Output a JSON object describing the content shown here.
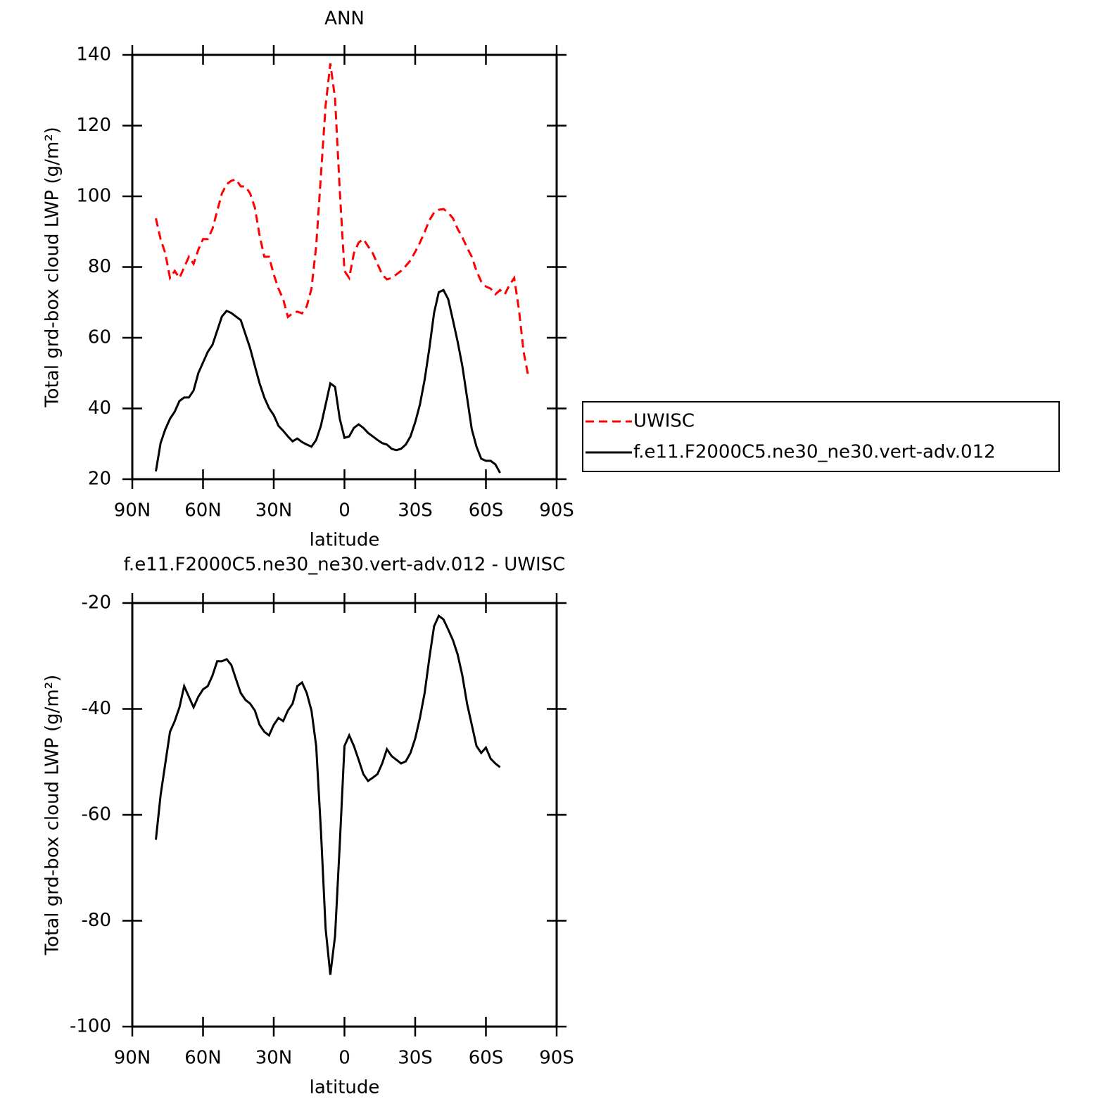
{
  "chart_data": [
    {
      "type": "line",
      "title": "ANN",
      "x_label": "latitude",
      "y_label": "Total grd-box cloud LWP (g/m²)",
      "x": [
        80,
        78,
        76,
        74,
        72,
        70,
        68,
        66,
        64,
        62,
        60,
        58,
        56,
        54,
        52,
        50,
        48,
        46,
        44,
        42,
        40,
        38,
        36,
        34,
        32,
        30,
        28,
        26,
        24,
        22,
        20,
        18,
        16,
        14,
        12,
        10,
        8,
        6,
        4,
        2,
        0,
        -2,
        -4,
        -6,
        -8,
        -10,
        -12,
        -14,
        -16,
        -18,
        -20,
        -22,
        -24,
        -26,
        -28,
        -30,
        -32,
        -34,
        -36,
        -38,
        -40,
        -42,
        -44,
        -46,
        -48,
        -50,
        -52,
        -54,
        -56,
        -58,
        -60,
        -62,
        -64,
        -66,
        -68,
        -70,
        -72,
        -74,
        -76,
        -78
      ],
      "series": [
        {
          "name": "UWISC",
          "color": "#ff0000",
          "dashed": true,
          "values": [
            93.8,
            87.9,
            83.9,
            76.9,
            78.9,
            76.9,
            79.9,
            82.9,
            80.9,
            84.9,
            87.9,
            87.9,
            90.8,
            95.8,
            100.8,
            103.4,
            104.4,
            104.8,
            102.8,
            102.8,
            100.8,
            96.8,
            88.9,
            82.9,
            82.9,
            77.9,
            73.9,
            70.9,
            65.9,
            66.9,
            67.4,
            66.9,
            68.9,
            73.9,
            85.9,
            105.8,
            125.7,
            137.6,
            127.7,
            101.8,
            78.9,
            76.9,
            83.9,
            86.9,
            87.9,
            85.9,
            83.9,
            80.9,
            77.9,
            76.5,
            76.9,
            77.9,
            78.9,
            80.3,
            81.9,
            84.3,
            86.9,
            89.9,
            93.2,
            95.4,
            96.2,
            96.4,
            95.4,
            93.8,
            90.8,
            88.4,
            85.5,
            82.9,
            78.9,
            75.9,
            74.5,
            73.9,
            72.3,
            73.5,
            72.3,
            74.9,
            76.9,
            68.0,
            56.0,
            49.0
          ]
        },
        {
          "name": "f.e11.F2000C5.ne30_ne30.vert-adv.012",
          "color": "#000000",
          "dashed": false,
          "values": [
            22.2,
            30.2,
            34.1,
            37.1,
            39.1,
            42.1,
            43.1,
            43.1,
            45.1,
            50.0,
            53.0,
            56.0,
            58.0,
            62.0,
            66.0,
            67.6,
            67.0,
            66.0,
            65.0,
            61.0,
            57.0,
            52.0,
            47.1,
            43.1,
            40.1,
            38.1,
            35.1,
            33.7,
            32.1,
            30.7,
            31.5,
            30.5,
            29.8,
            29.2,
            31.1,
            35.1,
            41.1,
            47.1,
            46.1,
            37.1,
            31.7,
            32.1,
            34.5,
            35.5,
            34.5,
            33.1,
            32.1,
            31.1,
            30.2,
            29.8,
            28.6,
            28.2,
            28.6,
            29.8,
            32.1,
            36.1,
            41.1,
            48.1,
            57.0,
            67.0,
            72.9,
            73.5,
            70.9,
            65.0,
            58.9,
            52.0,
            43.1,
            34.1,
            29.2,
            25.8,
            25.2,
            25.2,
            24.2,
            21.8,
            null,
            null,
            null,
            null,
            null,
            null
          ]
        }
      ],
      "xlim": [
        90,
        -90
      ],
      "xticks": [
        {
          "value": 90,
          "label": "90N"
        },
        {
          "value": 60,
          "label": "60N"
        },
        {
          "value": 30,
          "label": "30N"
        },
        0,
        {
          "value": -30,
          "label": "30S"
        },
        {
          "value": -60,
          "label": "60S"
        },
        {
          "value": -90,
          "label": "90S"
        }
      ],
      "ylim": [
        20,
        140
      ],
      "yticks": [
        20,
        40,
        60,
        80,
        100,
        120,
        140
      ],
      "legend": "right"
    },
    {
      "type": "line",
      "title": "f.e11.F2000C5.ne30_ne30.vert-adv.012 - UWISC",
      "x_label": "latitude",
      "y_label": "Total grd-box cloud LWP (g/m²)",
      "x": [
        80,
        78,
        76,
        74,
        72,
        70,
        68,
        66,
        64,
        62,
        60,
        58,
        56,
        54,
        52,
        50,
        48,
        46,
        44,
        42,
        40,
        38,
        36,
        34,
        32,
        30,
        28,
        26,
        24,
        22,
        20,
        18,
        16,
        14,
        12,
        10,
        8,
        6,
        4,
        2,
        0,
        -2,
        -4,
        -6,
        -8,
        -10,
        -12,
        -14,
        -16,
        -18,
        -20,
        -22,
        -24,
        -26,
        -28,
        -30,
        -32,
        -34,
        -36,
        -38,
        -40,
        -42,
        -44,
        -46,
        -48,
        -50,
        -52,
        -54,
        -56,
        -58,
        -60,
        -62,
        -64,
        -66
      ],
      "values": [
        -64.7,
        -56.3,
        -50.3,
        -44.3,
        -42.3,
        -39.7,
        -35.7,
        -37.7,
        -39.7,
        -37.7,
        -36.3,
        -35.7,
        -33.7,
        -31.0,
        -31.0,
        -30.6,
        -31.7,
        -34.4,
        -37.0,
        -38.3,
        -39.0,
        -40.3,
        -43.0,
        -44.3,
        -45.0,
        -43.0,
        -41.7,
        -42.3,
        -40.3,
        -39.0,
        -35.7,
        -35.0,
        -37.0,
        -40.3,
        -47.0,
        -62.9,
        -81.5,
        -90.2,
        -82.9,
        -65.6,
        -47.0,
        -45.0,
        -47.0,
        -49.6,
        -52.3,
        -53.6,
        -53.0,
        -52.3,
        -50.3,
        -47.6,
        -48.9,
        -49.6,
        -50.3,
        -49.9,
        -48.3,
        -45.6,
        -41.7,
        -37.0,
        -30.4,
        -24.4,
        -22.4,
        -23.1,
        -25.0,
        -27.0,
        -29.7,
        -33.7,
        -39.0,
        -43.0,
        -47.0,
        -48.3,
        -47.3,
        -49.4,
        -50.3,
        -51.0
      ],
      "color": "#000000",
      "xlim": [
        90,
        -90
      ],
      "xticks": [
        {
          "value": 90,
          "label": "90N"
        },
        {
          "value": 60,
          "label": "60N"
        },
        {
          "value": 30,
          "label": "30N"
        },
        0,
        {
          "value": -30,
          "label": "30S"
        },
        {
          "value": -60,
          "label": "60S"
        },
        {
          "value": -90,
          "label": "90S"
        }
      ],
      "ylim": [
        -100,
        -20
      ],
      "yticks": [
        -100,
        -80,
        -60,
        -40,
        -20
      ]
    }
  ]
}
